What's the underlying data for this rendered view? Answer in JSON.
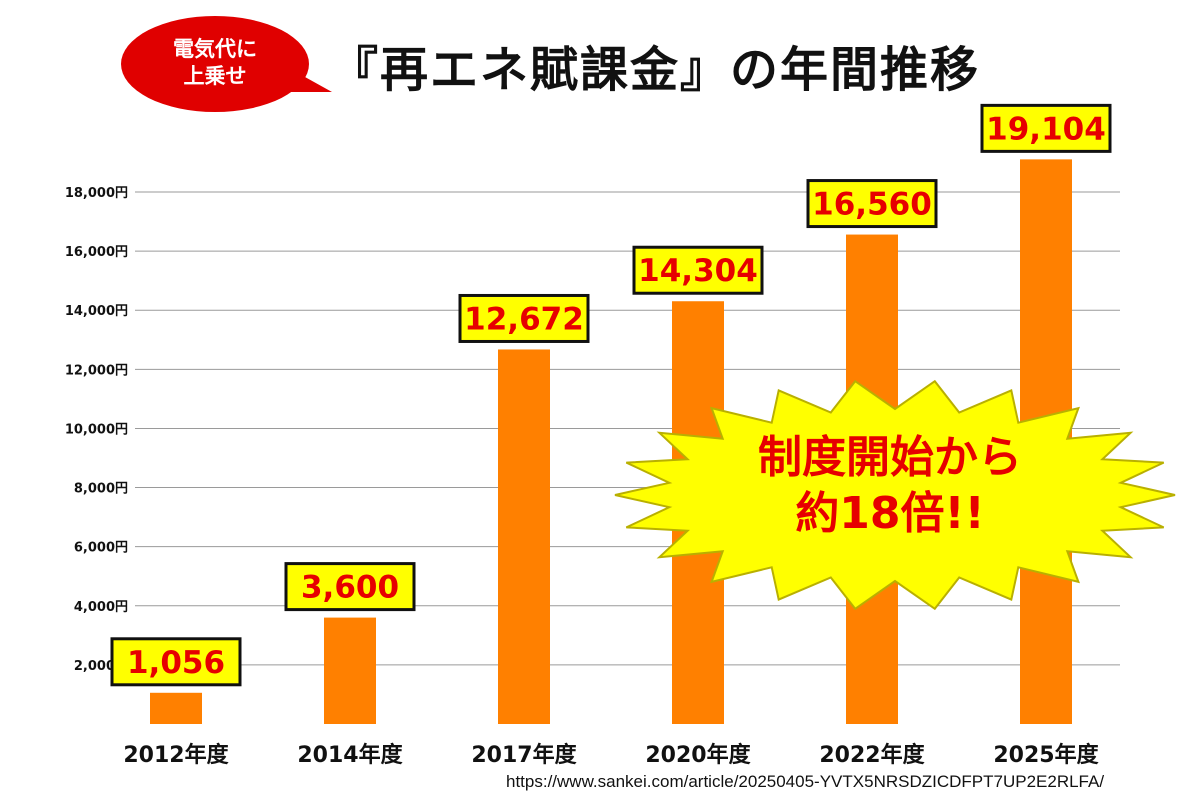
{
  "header": {
    "title": "『再エネ賦課金』の年間推移",
    "badge": "電気代に\n上乗せ"
  },
  "callout": {
    "text": "制度開始から\n約18倍!!"
  },
  "source": "https://www.sankei.com/article/20250405-YVTX5NRSDZICDFPT7UP2E2RLFA/",
  "colors": {
    "bar": "#ff8000",
    "label_box": "#ffff00",
    "label_text": "#e60000",
    "badge": "#e00000",
    "burst": "#ffff00",
    "grid": "#9a9a9a"
  },
  "chart_data": {
    "type": "bar",
    "categories": [
      "2012年度",
      "2014年度",
      "2017年度",
      "2020年度",
      "2022年度",
      "2025年度"
    ],
    "values": [
      1056,
      3600,
      12672,
      14304,
      16560,
      19104
    ],
    "value_labels": [
      "1,056",
      "3,600",
      "12,672",
      "14,304",
      "16,560",
      "19,104"
    ],
    "y_ticks": [
      "2,000円",
      "4,000円",
      "6,000円",
      "8,000円",
      "10,000円",
      "12,000円",
      "14,000円",
      "16,000円",
      "18,000円"
    ],
    "y_tick_values": [
      2000,
      4000,
      6000,
      8000,
      10000,
      12000,
      14000,
      16000,
      18000
    ],
    "ylim": [
      0,
      18000
    ],
    "grid": true,
    "title": "『再エネ賦課金』の年間推移",
    "xlabel": "",
    "ylabel": ""
  }
}
